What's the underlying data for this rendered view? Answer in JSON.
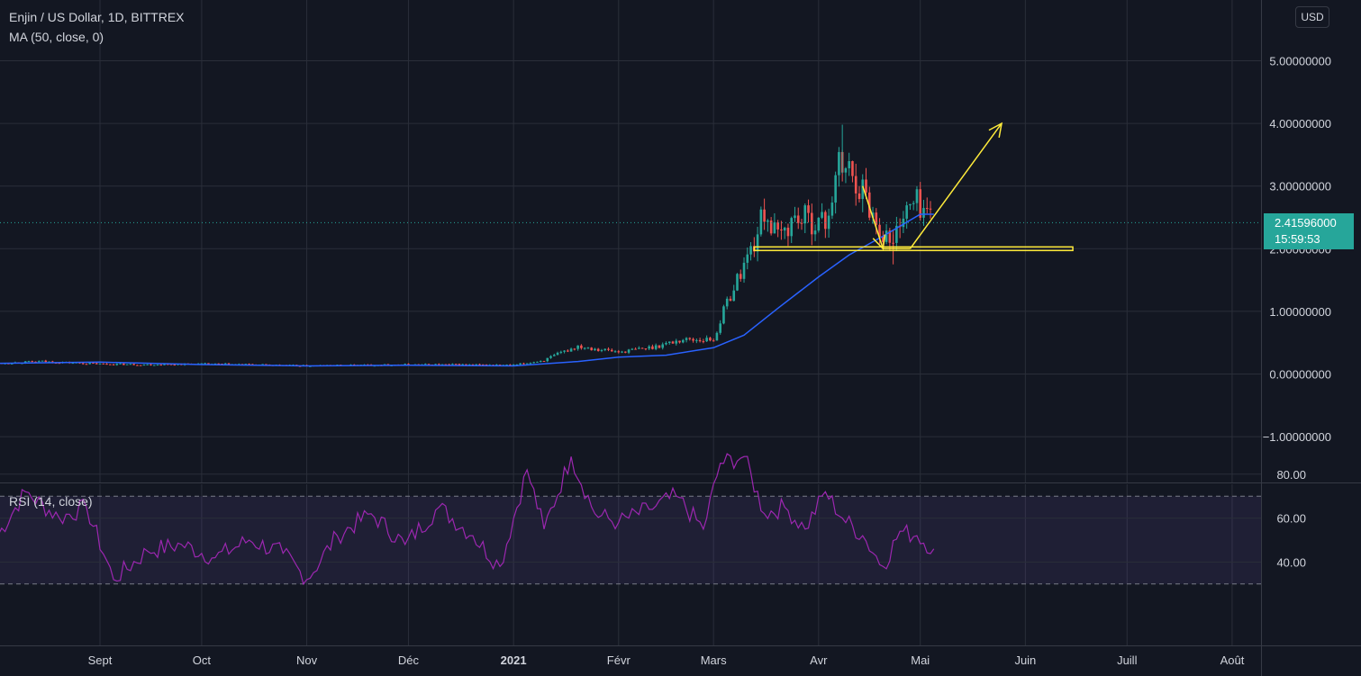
{
  "header": {
    "symbol_title": "Enjin / US Dollar, 1D, BITTREX",
    "ma_label": "MA (50, close, 0)",
    "rsi_label": "RSI (14, close)",
    "currency_button": "USD"
  },
  "price_tag": {
    "price": "2.41596000",
    "countdown": "15:59:53",
    "color": "#26a69a"
  },
  "colors": {
    "background": "#131722",
    "up_candle": "#26a69a",
    "down_candle": "#ef5350",
    "ma_line": "#2962ff",
    "rsi_line": "#9c27b0",
    "rsi_band": "#7e57c2",
    "annotation": "#ffeb3b"
  },
  "chart_data": [
    {
      "type": "line",
      "title": "Enjin / US Dollar, 1D, BITTREX",
      "y_ticks": [
        "5.00000000",
        "4.00000000",
        "3.00000000",
        "2.00000000",
        "1.00000000",
        "0.00000000",
        "−1.00000000"
      ],
      "x_ticks": [
        "Sept",
        "Oct",
        "Nov",
        "Déc",
        "2021",
        "Févr",
        "Mars",
        "Avr",
        "Mai",
        "Juin",
        "Juill",
        "Août"
      ],
      "ylim": [
        -1.8,
        5.7
      ],
      "grid": true,
      "price_series": {
        "name": "Enjin / US Dollar",
        "x": [
          "2020-08-01",
          "2020-08-15",
          "2020-09-01",
          "2020-09-15",
          "2020-10-01",
          "2020-10-15",
          "2020-11-01",
          "2020-11-15",
          "2020-12-01",
          "2020-12-15",
          "2021-01-01",
          "2021-01-10",
          "2021-01-20",
          "2021-02-01",
          "2021-02-10",
          "2021-02-20",
          "2021-03-01",
          "2021-03-05",
          "2021-03-10",
          "2021-03-13",
          "2021-03-16",
          "2021-03-20",
          "2021-03-25",
          "2021-03-30",
          "2021-04-03",
          "2021-04-07",
          "2021-04-10",
          "2021-04-14",
          "2021-04-18",
          "2021-04-21",
          "2021-04-23",
          "2021-04-25",
          "2021-04-27",
          "2021-04-30",
          "2021-05-03",
          "2021-05-05"
        ],
        "close": [
          0.17,
          0.2,
          0.16,
          0.15,
          0.16,
          0.15,
          0.13,
          0.14,
          0.15,
          0.15,
          0.14,
          0.22,
          0.45,
          0.35,
          0.42,
          0.55,
          0.55,
          1.15,
          1.75,
          2.1,
          2.6,
          2.15,
          2.5,
          2.45,
          2.4,
          3.3,
          3.25,
          2.95,
          2.4,
          2.2,
          2.05,
          2.5,
          2.6,
          2.75,
          2.6,
          2.42
        ]
      },
      "ma_series": {
        "name": "MA (50, close, 0)",
        "x": [
          "2020-08-01",
          "2020-09-01",
          "2020-10-01",
          "2020-11-01",
          "2020-12-01",
          "2021-01-01",
          "2021-01-20",
          "2021-02-01",
          "2021-02-15",
          "2021-03-01",
          "2021-03-10",
          "2021-03-20",
          "2021-04-01",
          "2021-04-10",
          "2021-04-20",
          "2021-05-01",
          "2021-05-05"
        ],
        "values": [
          0.17,
          0.19,
          0.15,
          0.13,
          0.14,
          0.13,
          0.2,
          0.27,
          0.3,
          0.42,
          0.62,
          1.05,
          1.55,
          1.9,
          2.2,
          2.55,
          2.55
        ]
      },
      "annotations": [
        {
          "type": "horizontal_line",
          "value": 2.0,
          "from": "2021-03-13",
          "to": "2021-06-15"
        },
        {
          "type": "arrow",
          "points": [
            [
              "2021-04-14",
              3.0
            ],
            [
              "2021-04-20",
              2.0
            ]
          ]
        },
        {
          "type": "line",
          "points": [
            [
              "2021-04-20",
              2.0
            ],
            [
              "2021-04-28",
              2.0
            ]
          ]
        },
        {
          "type": "arrow",
          "points": [
            [
              "2021-04-28",
              2.0
            ],
            [
              "2021-05-25",
              4.0
            ]
          ]
        }
      ]
    },
    {
      "type": "line",
      "title": "RSI (14, close)",
      "y_ticks": [
        "80.00",
        "60.00",
        "40.00"
      ],
      "ylim": [
        28,
        95
      ],
      "band": [
        30,
        70
      ],
      "series": [
        {
          "name": "RSI (14, close)",
          "x": [
            "2020-08-01",
            "2020-08-10",
            "2020-08-20",
            "2020-08-28",
            "2020-09-05",
            "2020-09-15",
            "2020-09-25",
            "2020-10-05",
            "2020-10-15",
            "2020-10-25",
            "2020-11-01",
            "2020-11-10",
            "2020-11-20",
            "2020-11-30",
            "2020-12-10",
            "2020-12-20",
            "2020-12-28",
            "2021-01-05",
            "2021-01-10",
            "2021-01-18",
            "2021-01-25",
            "2021-02-01",
            "2021-02-10",
            "2021-02-18",
            "2021-02-26",
            "2021-03-03",
            "2021-03-10",
            "2021-03-16",
            "2021-03-22",
            "2021-03-28",
            "2021-04-03",
            "2021-04-08",
            "2021-04-14",
            "2021-04-20",
            "2021-04-25",
            "2021-04-30",
            "2021-05-05"
          ],
          "values": [
            50,
            72,
            60,
            65,
            32,
            45,
            48,
            42,
            50,
            44,
            32,
            52,
            62,
            48,
            65,
            52,
            38,
            82,
            55,
            88,
            62,
            58,
            64,
            70,
            55,
            85,
            88,
            62,
            65,
            55,
            72,
            60,
            52,
            38,
            54,
            52,
            46
          ]
        }
      ]
    }
  ]
}
